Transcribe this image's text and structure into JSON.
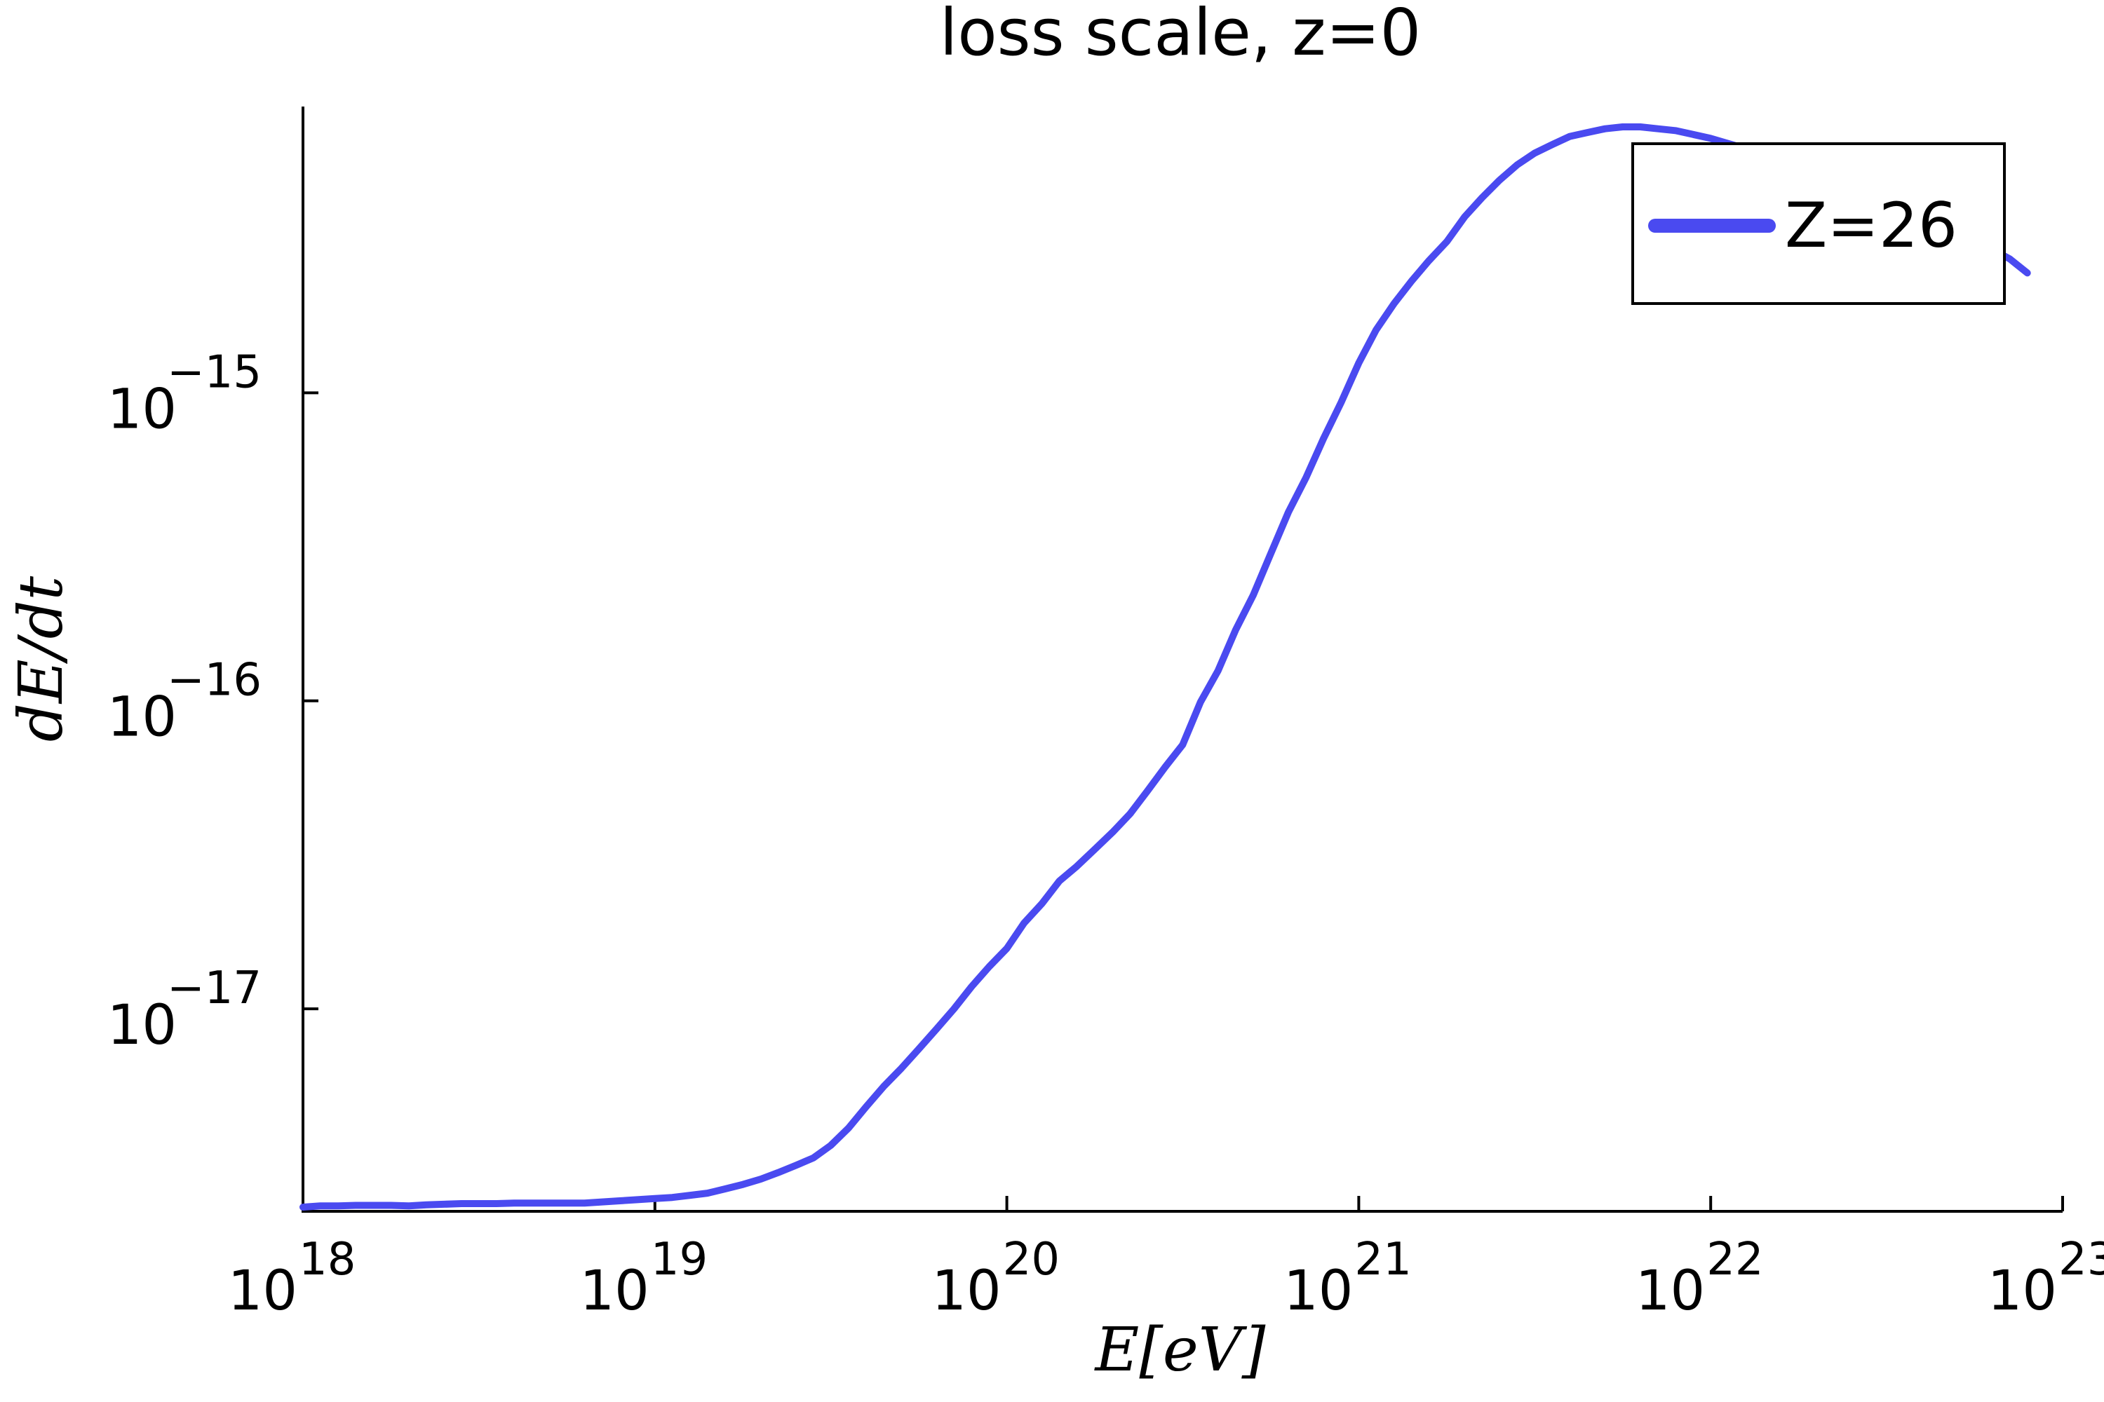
{
  "chart_data": {
    "type": "line",
    "title": "loss scale, z=0",
    "xlabel": "E[eV]",
    "ylabel": "dE/dt",
    "x_scale": "log",
    "y_scale": "log",
    "xlim": [
      1e+18,
      1e+23
    ],
    "ylim": [
      2.2e-18,
      8.5e-15
    ],
    "x_ticks": [
      {
        "base": "10",
        "exp": "18"
      },
      {
        "base": "10",
        "exp": "19"
      },
      {
        "base": "10",
        "exp": "20"
      },
      {
        "base": "10",
        "exp": "21"
      },
      {
        "base": "10",
        "exp": "22"
      },
      {
        "base": "10",
        "exp": "23"
      }
    ],
    "y_ticks": [
      {
        "base": "10",
        "exp": "−15"
      },
      {
        "base": "10",
        "exp": "−16"
      },
      {
        "base": "10",
        "exp": "−17"
      }
    ],
    "grid": false,
    "legend_position": "top-right",
    "colors": {
      "series": "#4a4af0",
      "axis": "#000000"
    },
    "series": [
      {
        "name": "Z=26",
        "x": [
          1e+18,
          1.12e+18,
          1.26e+18,
          1.41e+18,
          1.58e+18,
          1.78e+18,
          2e+18,
          2.24e+18,
          2.51e+18,
          2.82e+18,
          3.16e+18,
          3.55e+18,
          3.98e+18,
          4.47e+18,
          5.01e+18,
          5.62e+18,
          6.31e+18,
          7.08e+18,
          7.94e+18,
          8.91e+18,
          1e+19,
          1.12e+19,
          1.26e+19,
          1.41e+19,
          1.58e+19,
          1.78e+19,
          2e+19,
          2.24e+19,
          2.51e+19,
          2.82e+19,
          3.16e+19,
          3.55e+19,
          3.98e+19,
          4.47e+19,
          5.01e+19,
          5.62e+19,
          6.31e+19,
          7.08e+19,
          7.94e+19,
          8.91e+19,
          1e+20,
          1.12e+20,
          1.26e+20,
          1.41e+20,
          1.58e+20,
          1.78e+20,
          2e+20,
          2.24e+20,
          2.51e+20,
          2.82e+20,
          3.16e+20,
          3.55e+20,
          3.98e+20,
          4.47e+20,
          5.01e+20,
          5.62e+20,
          6.31e+20,
          7.08e+20,
          7.94e+20,
          8.91e+20,
          1e+21,
          1.12e+21,
          1.26e+21,
          1.41e+21,
          1.58e+21,
          1.78e+21,
          2e+21,
          2.24e+21,
          2.51e+21,
          2.82e+21,
          3.16e+21,
          3.55e+21,
          3.98e+21,
          4.47e+21,
          5.01e+21,
          5.62e+21,
          6.31e+21,
          7.08e+21,
          7.94e+21,
          8.91e+21,
          1e+22,
          1.12e+22,
          1.26e+22,
          1.41e+22,
          1.58e+22,
          1.78e+22,
          2e+22,
          2.24e+22,
          2.51e+22,
          2.82e+22,
          3.16e+22,
          3.55e+22,
          3.98e+22,
          4.47e+22,
          5.01e+22,
          5.62e+22,
          6.31e+22,
          7.08e+22,
          7.94e+22
        ],
        "y": [
          2.27e-18,
          2.29e-18,
          2.29e-18,
          2.3e-18,
          2.3e-18,
          2.3e-18,
          2.29e-18,
          2.31e-18,
          2.32e-18,
          2.33e-18,
          2.33e-18,
          2.33e-18,
          2.34e-18,
          2.34e-18,
          2.34e-18,
          2.34e-18,
          2.34e-18,
          2.36e-18,
          2.38e-18,
          2.4e-18,
          2.42e-18,
          2.44e-18,
          2.48e-18,
          2.52e-18,
          2.6e-18,
          2.69e-18,
          2.8e-18,
          2.94e-18,
          3.1e-18,
          3.28e-18,
          3.6e-18,
          4.1e-18,
          4.8e-18,
          5.6e-18,
          6.4e-18,
          7.4e-18,
          8.6e-18,
          1e-17,
          1.18e-17,
          1.37e-17,
          1.57e-17,
          1.9e-17,
          2.2e-17,
          2.6e-17,
          2.9e-17,
          3.3e-17,
          3.75e-17,
          4.3e-17,
          5.1e-17,
          6.1e-17,
          7.2e-17,
          9.9e-17,
          1.25e-16,
          1.7e-16,
          2.2e-16,
          3e-16,
          4.1e-16,
          5.3e-16,
          7.1e-16,
          9.3e-16,
          1.25e-15,
          1.6e-15,
          1.95e-15,
          2.3e-15,
          2.68e-15,
          3.1e-15,
          3.73e-15,
          4.3e-15,
          4.9e-15,
          5.5e-15,
          6e-15,
          6.4e-15,
          6.8e-15,
          7e-15,
          7.2e-15,
          7.3e-15,
          7.3e-15,
          7.2e-15,
          7.1e-15,
          6.9e-15,
          6.7e-15,
          6.45e-15,
          6.2e-15,
          5.95e-15,
          5.65e-15,
          5.42e-15,
          5.2e-15,
          4.98e-15,
          4.75e-15,
          4.5e-15,
          4.25e-15,
          4e-15,
          3.78e-15,
          3.55e-15,
          3.32e-15,
          3.12e-15,
          2.92e-15,
          2.72e-15,
          2.45e-15
        ]
      }
    ]
  }
}
